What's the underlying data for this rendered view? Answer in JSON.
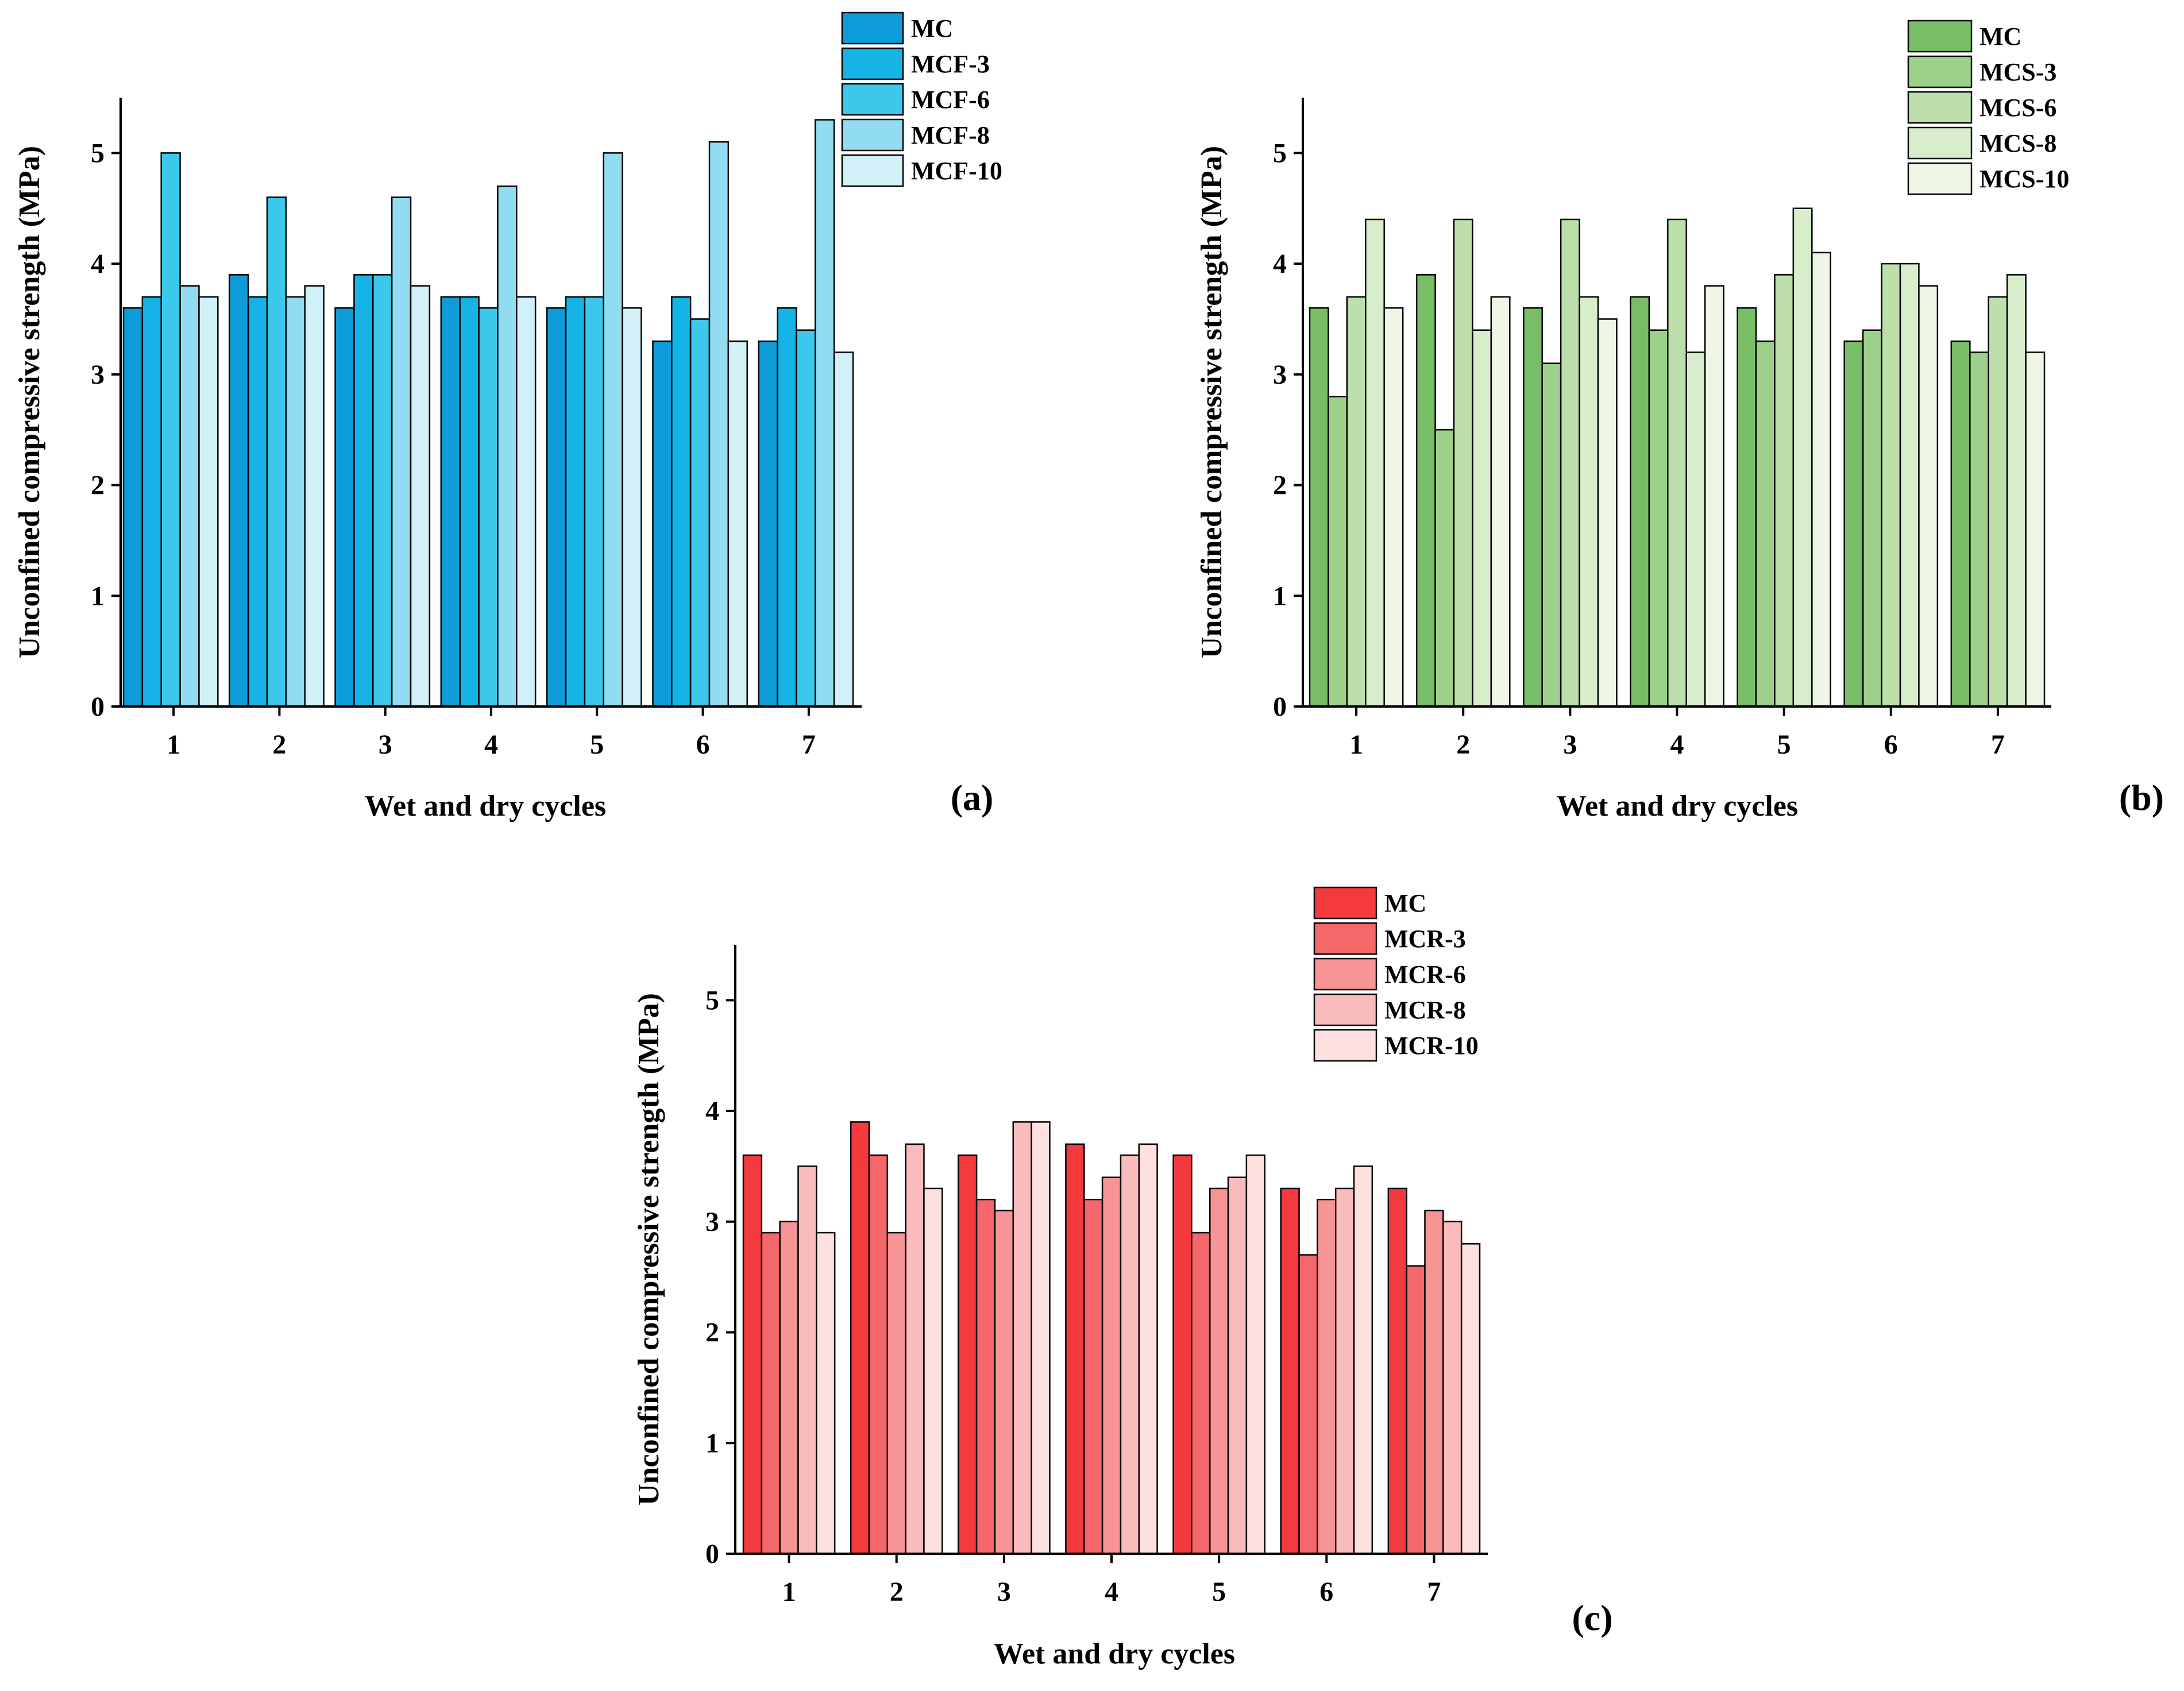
{
  "chart_data": [
    {
      "type": "bar",
      "panel_label": "(a)",
      "xlabel": "Wet and dry cycles",
      "ylabel": "Unconfined compressive strength (MPa)",
      "ylim": [
        0,
        5.5
      ],
      "yticks": [
        "0",
        "1",
        "2",
        "3",
        "4",
        "5"
      ],
      "categories": [
        "1",
        "2",
        "3",
        "4",
        "5",
        "6",
        "7"
      ],
      "legend_position": "top-right",
      "series": [
        {
          "name": "MC",
          "color": "#0E9CD8",
          "values": [
            3.6,
            3.9,
            3.6,
            3.7,
            3.6,
            3.3,
            3.3
          ]
        },
        {
          "name": "MCF-3",
          "color": "#16B4E6",
          "values": [
            3.7,
            3.7,
            3.9,
            3.7,
            3.7,
            3.7,
            3.6
          ]
        },
        {
          "name": "MCF-6",
          "color": "#3CC8EA",
          "values": [
            5.0,
            4.6,
            3.9,
            3.6,
            3.7,
            3.5,
            3.4
          ]
        },
        {
          "name": "MCF-8",
          "color": "#92DCF1",
          "values": [
            3.8,
            3.7,
            4.6,
            4.7,
            5.0,
            5.1,
            5.3
          ]
        },
        {
          "name": "MCF-10",
          "color": "#D2F0F7",
          "values": [
            3.7,
            3.8,
            3.8,
            3.7,
            3.6,
            3.3,
            3.2
          ]
        }
      ]
    },
    {
      "type": "bar",
      "panel_label": "(b)",
      "xlabel": "Wet and dry cycles",
      "ylabel": "Unconfined compressive strength (MPa)",
      "ylim": [
        0,
        5.5
      ],
      "yticks": [
        "0",
        "1",
        "2",
        "3",
        "4",
        "5"
      ],
      "categories": [
        "1",
        "2",
        "3",
        "4",
        "5",
        "6",
        "7"
      ],
      "legend_position": "top-right",
      "series": [
        {
          "name": "MC",
          "color": "#78BE66",
          "values": [
            3.6,
            3.9,
            3.6,
            3.7,
            3.6,
            3.3,
            3.3
          ]
        },
        {
          "name": "MCS-3",
          "color": "#9DD18A",
          "values": [
            2.8,
            2.5,
            3.1,
            3.4,
            3.3,
            3.4,
            3.2
          ]
        },
        {
          "name": "MCS-6",
          "color": "#BCDFAC",
          "values": [
            3.7,
            4.4,
            4.4,
            4.4,
            3.9,
            4.0,
            3.7
          ]
        },
        {
          "name": "MCS-8",
          "color": "#D8EDCC",
          "values": [
            4.4,
            3.4,
            3.7,
            3.2,
            4.5,
            4.0,
            3.9
          ]
        },
        {
          "name": "MCS-10",
          "color": "#EEF7E6",
          "values": [
            3.6,
            3.7,
            3.5,
            3.8,
            4.1,
            3.8,
            3.2
          ]
        }
      ]
    },
    {
      "type": "bar",
      "panel_label": "(c)",
      "xlabel": "Wet and dry cycles",
      "ylabel": "Unconfined compressive strength (MPa)",
      "ylim": [
        0,
        5.5
      ],
      "yticks": [
        "0",
        "1",
        "2",
        "3",
        "4",
        "5"
      ],
      "categories": [
        "1",
        "2",
        "3",
        "4",
        "5",
        "6",
        "7"
      ],
      "legend_position": "top-right",
      "series": [
        {
          "name": "MC",
          "color": "#F23A3F",
          "values": [
            3.6,
            3.9,
            3.6,
            3.7,
            3.6,
            3.3,
            3.3
          ]
        },
        {
          "name": "MCR-3",
          "color": "#F4676B",
          "values": [
            2.9,
            3.6,
            3.2,
            3.2,
            2.9,
            2.7,
            2.6
          ]
        },
        {
          "name": "MCR-6",
          "color": "#F79496",
          "values": [
            3.0,
            2.9,
            3.1,
            3.4,
            3.3,
            3.2,
            3.1
          ]
        },
        {
          "name": "MCR-8",
          "color": "#FABBBC",
          "values": [
            3.5,
            3.7,
            3.9,
            3.6,
            3.4,
            3.3,
            3.0
          ]
        },
        {
          "name": "MCR-10",
          "color": "#FDE0E0",
          "values": [
            2.9,
            3.3,
            3.9,
            3.7,
            3.6,
            3.5,
            2.8
          ]
        }
      ]
    }
  ]
}
